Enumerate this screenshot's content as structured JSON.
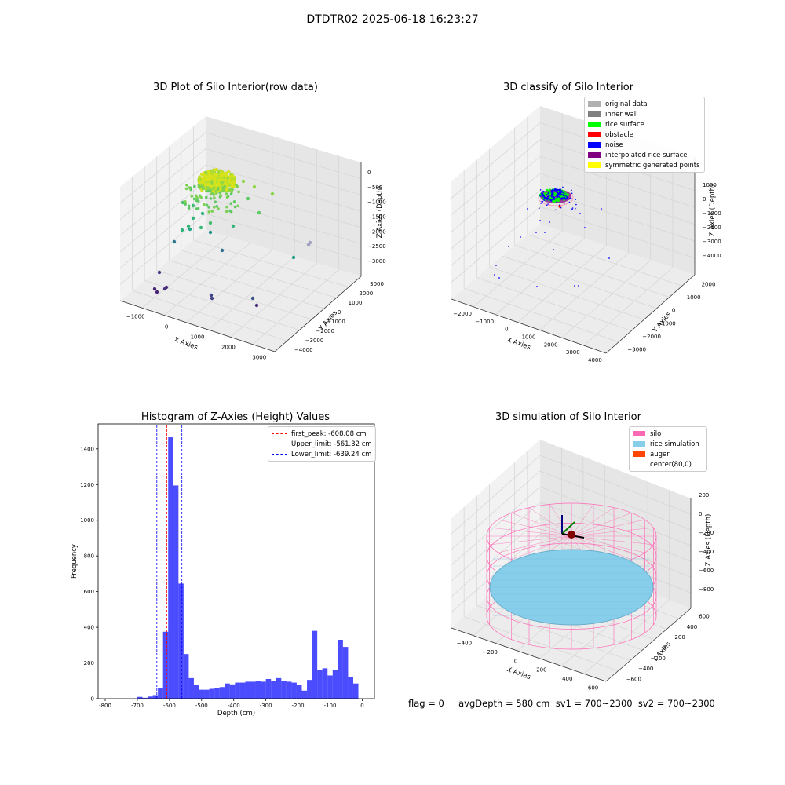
{
  "suptitle": "DTDTR02 2025-06-18 16:23:27",
  "footer": "flag = 0     avgDepth = 580 cm  sv1 = 700~2300  sv2 = 700~2300",
  "chart_data": [
    {
      "type": "scatter",
      "title": "3D Plot of Silo Interior(row data)",
      "xlabel": "X Axies",
      "ylabel": "Y Axies",
      "zlabel": "Z Axies (Depth)",
      "x_ticks": [
        "−1000",
        "0",
        "1000",
        "2000",
        "3000"
      ],
      "y_ticks": [
        "−4000",
        "−3000",
        "−2000",
        "−1000",
        "0",
        "1000",
        "2000",
        "3000"
      ],
      "z_ticks": [
        "−3000",
        "−2500",
        "−2000",
        "−1500",
        "−1000",
        "−500",
        "0"
      ],
      "colormap": "viridis"
    },
    {
      "type": "scatter",
      "title": "3D classify of Silo Interior",
      "xlabel": "X Axies",
      "ylabel": "Y Axies",
      "zlabel": "Z Axies (Depth)",
      "x_ticks": [
        "−2000",
        "−1000",
        "0",
        "1000",
        "2000",
        "3000",
        "4000"
      ],
      "y_ticks": [
        "−3000",
        "−2000",
        "−1000",
        "0",
        "1000",
        "2000"
      ],
      "z_ticks": [
        "−4000",
        "−3000",
        "−2000",
        "−1000",
        "0",
        "1000"
      ],
      "legend": [
        {
          "label": "original data",
          "color": "#b0b0b0"
        },
        {
          "label": "inner wall",
          "color": "#808080"
        },
        {
          "label": "rice surface",
          "color": "#00ff00"
        },
        {
          "label": "obstacle",
          "color": "#ff0000"
        },
        {
          "label": "noise",
          "color": "#0000ff"
        },
        {
          "label": "interpolated rice surface",
          "color": "#800080"
        },
        {
          "label": "symmetric generated points",
          "color": "#ffff00"
        }
      ]
    },
    {
      "type": "bar",
      "title": "Histogram of Z-Axies (Height) Values",
      "xlabel": "Depth (cm)",
      "ylabel": "Frequency",
      "xlim": [
        -822,
        38
      ],
      "ylim": [
        0,
        1540
      ],
      "x_ticks": [
        -800,
        -700,
        -600,
        -500,
        -400,
        -300,
        -200,
        -100,
        0
      ],
      "y_ticks": [
        0,
        200,
        400,
        600,
        800,
        1000,
        1200,
        1400
      ],
      "bin_width": 16,
      "bin_starts": [
        -700,
        -684,
        -668,
        -652,
        -636,
        -620,
        -604,
        -588,
        -572,
        -556,
        -540,
        -524,
        -508,
        -492,
        -476,
        -460,
        -444,
        -428,
        -412,
        -396,
        -380,
        -364,
        -348,
        -332,
        -316,
        -300,
        -284,
        -268,
        -252,
        -236,
        -220,
        -204,
        -188,
        -172,
        -156,
        -140,
        -124,
        -108,
        -92,
        -76,
        -60,
        -44,
        -28,
        -12
      ],
      "values": [
        10,
        5,
        12,
        20,
        60,
        375,
        1465,
        1195,
        645,
        250,
        115,
        75,
        50,
        50,
        55,
        60,
        65,
        85,
        80,
        90,
        90,
        95,
        95,
        100,
        95,
        110,
        100,
        115,
        100,
        95,
        90,
        75,
        45,
        105,
        380,
        160,
        170,
        130,
        160,
        330,
        290,
        120,
        85,
        0
      ],
      "bar_color": "#0000ff",
      "vlines": [
        {
          "label": "first_peak: -608.08 cm",
          "x": -608.08,
          "color": "#ff0000"
        },
        {
          "label": "Upper_limit: -561.32 cm",
          "x": -561.32,
          "color": "#0000ff"
        },
        {
          "label": "Lower_limit: -639.24 cm",
          "x": -639.24,
          "color": "#0000ff"
        }
      ]
    },
    {
      "type": "surface",
      "title": "3D simulation of Silo Interior",
      "xlabel": "X Axies",
      "ylabel": "Y Axies",
      "zlabel": "Z Axies (Depth)",
      "x_ticks": [
        "−400",
        "−200",
        "0",
        "200",
        "400",
        "600"
      ],
      "y_ticks": [
        "−600",
        "−400",
        "−200",
        "0",
        "200",
        "400",
        "600"
      ],
      "z_ticks": [
        "−800",
        "−600",
        "−400",
        "−200",
        "0",
        "200"
      ],
      "legend": [
        {
          "label": "silo",
          "color": "#ff69b4"
        },
        {
          "label": "rice simulation",
          "color": "#87ceeb"
        },
        {
          "label": "auger",
          "color": "#ff4500"
        },
        {
          "label": "center(80,0)",
          "color": "#ffffff"
        }
      ]
    }
  ]
}
